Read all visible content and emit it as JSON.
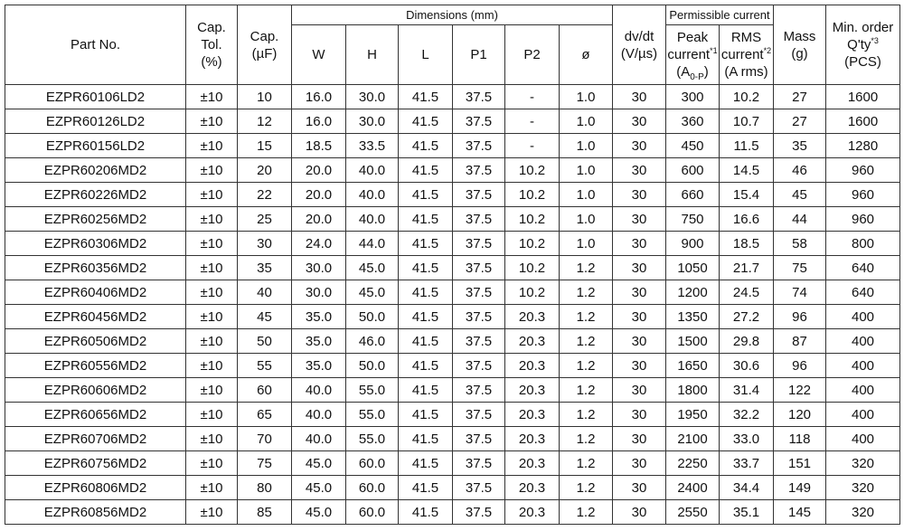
{
  "table": {
    "header": {
      "part_no": "Part No.",
      "cap_tol": [
        "Cap.",
        "Tol.",
        "(%)"
      ],
      "cap": [
        "Cap.",
        "(µF)"
      ],
      "dimensions": "Dimensions (mm)",
      "dims": [
        "W",
        "H",
        "L",
        "P1",
        "P2",
        "ø"
      ],
      "dvdt": [
        "dv/dt",
        "(V/µs)"
      ],
      "permissible": "Permissible current",
      "peak": {
        "lines": [
          "Peak",
          "current"
        ],
        "note": "*1",
        "unit": "(A",
        "sub": "0-P",
        "close": ")"
      },
      "rms": {
        "lines": [
          "RMS",
          "current"
        ],
        "note": "*2",
        "unit": "(A rms)"
      },
      "mass": [
        "Mass",
        "(g)"
      ],
      "min_order": {
        "lines": [
          "Min. order",
          "Q'ty"
        ],
        "note": "*3",
        "unit": "(PCS)"
      }
    },
    "rows": [
      [
        "EZPR60106LD2",
        "±10",
        "10",
        "16.0",
        "30.0",
        "41.5",
        "37.5",
        "-",
        "1.0",
        "30",
        "300",
        "10.2",
        "27",
        "1600"
      ],
      [
        "EZPR60126LD2",
        "±10",
        "12",
        "16.0",
        "30.0",
        "41.5",
        "37.5",
        "-",
        "1.0",
        "30",
        "360",
        "10.7",
        "27",
        "1600"
      ],
      [
        "EZPR60156LD2",
        "±10",
        "15",
        "18.5",
        "33.5",
        "41.5",
        "37.5",
        "-",
        "1.0",
        "30",
        "450",
        "11.5",
        "35",
        "1280"
      ],
      [
        "EZPR60206MD2",
        "±10",
        "20",
        "20.0",
        "40.0",
        "41.5",
        "37.5",
        "10.2",
        "1.0",
        "30",
        "600",
        "14.5",
        "46",
        "960"
      ],
      [
        "EZPR60226MD2",
        "±10",
        "22",
        "20.0",
        "40.0",
        "41.5",
        "37.5",
        "10.2",
        "1.0",
        "30",
        "660",
        "15.4",
        "45",
        "960"
      ],
      [
        "EZPR60256MD2",
        "±10",
        "25",
        "20.0",
        "40.0",
        "41.5",
        "37.5",
        "10.2",
        "1.0",
        "30",
        "750",
        "16.6",
        "44",
        "960"
      ],
      [
        "EZPR60306MD2",
        "±10",
        "30",
        "24.0",
        "44.0",
        "41.5",
        "37.5",
        "10.2",
        "1.0",
        "30",
        "900",
        "18.5",
        "58",
        "800"
      ],
      [
        "EZPR60356MD2",
        "±10",
        "35",
        "30.0",
        "45.0",
        "41.5",
        "37.5",
        "10.2",
        "1.2",
        "30",
        "1050",
        "21.7",
        "75",
        "640"
      ],
      [
        "EZPR60406MD2",
        "±10",
        "40",
        "30.0",
        "45.0",
        "41.5",
        "37.5",
        "10.2",
        "1.2",
        "30",
        "1200",
        "24.5",
        "74",
        "640"
      ],
      [
        "EZPR60456MD2",
        "±10",
        "45",
        "35.0",
        "50.0",
        "41.5",
        "37.5",
        "20.3",
        "1.2",
        "30",
        "1350",
        "27.2",
        "96",
        "400"
      ],
      [
        "EZPR60506MD2",
        "±10",
        "50",
        "35.0",
        "46.0",
        "41.5",
        "37.5",
        "20.3",
        "1.2",
        "30",
        "1500",
        "29.8",
        "87",
        "400"
      ],
      [
        "EZPR60556MD2",
        "±10",
        "55",
        "35.0",
        "50.0",
        "41.5",
        "37.5",
        "20.3",
        "1.2",
        "30",
        "1650",
        "30.6",
        "96",
        "400"
      ],
      [
        "EZPR60606MD2",
        "±10",
        "60",
        "40.0",
        "55.0",
        "41.5",
        "37.5",
        "20.3",
        "1.2",
        "30",
        "1800",
        "31.4",
        "122",
        "400"
      ],
      [
        "EZPR60656MD2",
        "±10",
        "65",
        "40.0",
        "55.0",
        "41.5",
        "37.5",
        "20.3",
        "1.2",
        "30",
        "1950",
        "32.2",
        "120",
        "400"
      ],
      [
        "EZPR60706MD2",
        "±10",
        "70",
        "40.0",
        "55.0",
        "41.5",
        "37.5",
        "20.3",
        "1.2",
        "30",
        "2100",
        "33.0",
        "118",
        "400"
      ],
      [
        "EZPR60756MD2",
        "±10",
        "75",
        "45.0",
        "60.0",
        "41.5",
        "37.5",
        "20.3",
        "1.2",
        "30",
        "2250",
        "33.7",
        "151",
        "320"
      ],
      [
        "EZPR60806MD2",
        "±10",
        "80",
        "45.0",
        "60.0",
        "41.5",
        "37.5",
        "20.3",
        "1.2",
        "30",
        "2400",
        "34.4",
        "149",
        "320"
      ],
      [
        "EZPR60856MD2",
        "±10",
        "85",
        "45.0",
        "60.0",
        "41.5",
        "37.5",
        "20.3",
        "1.2",
        "30",
        "2550",
        "35.1",
        "145",
        "320"
      ]
    ]
  }
}
